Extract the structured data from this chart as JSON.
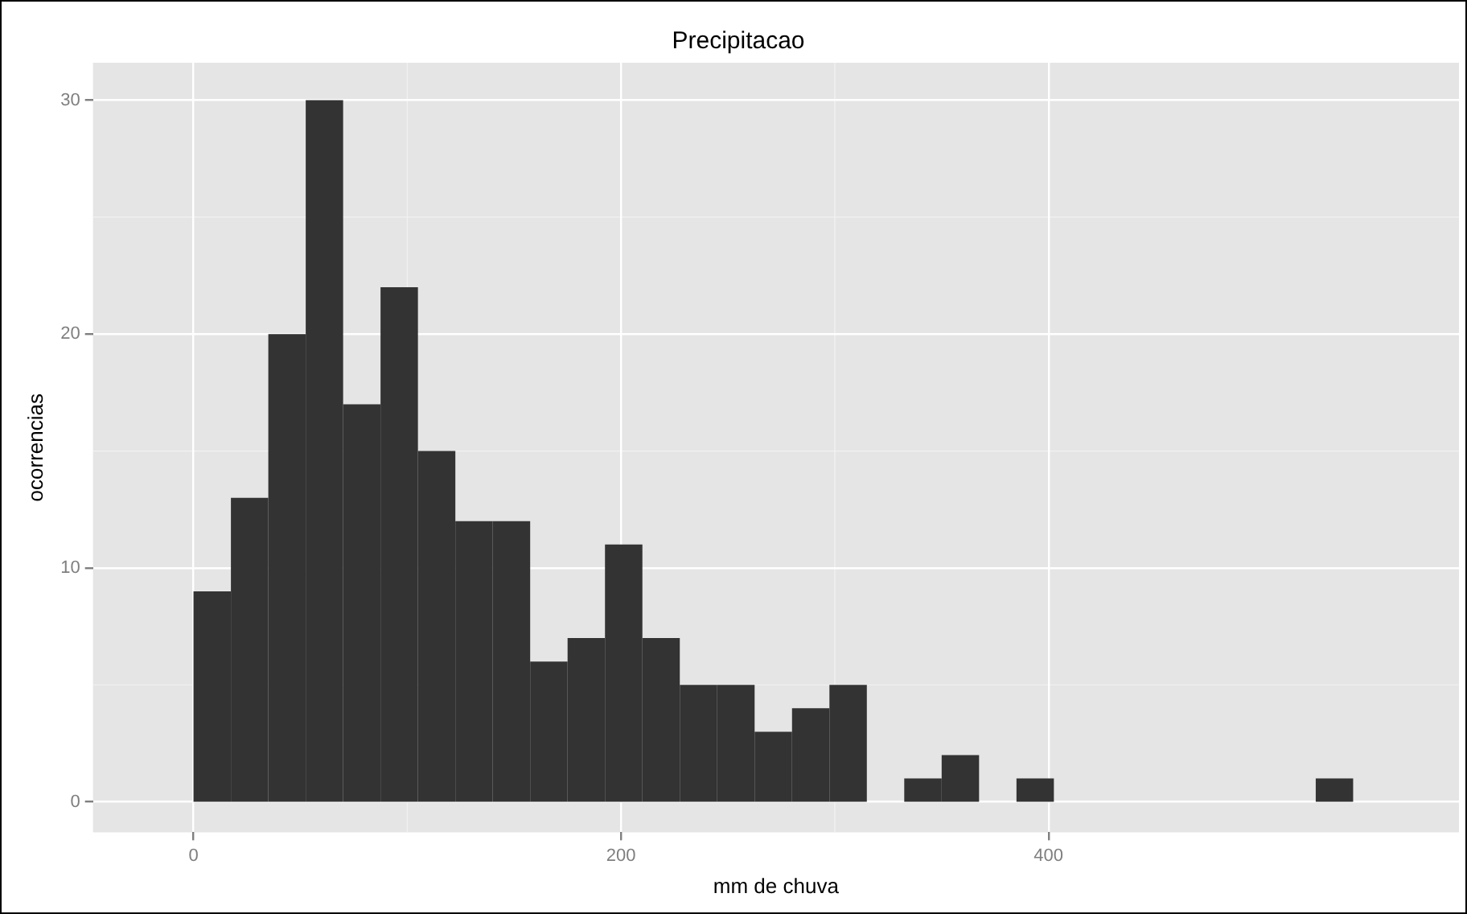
{
  "chart_data": {
    "type": "histogram",
    "title": "Precipitacao",
    "xlabel": "mm de chuva",
    "ylabel": "ocorrencias",
    "bins": [
      0,
      17.5,
      35,
      52.5,
      70,
      87.5,
      105,
      122.5,
      140,
      157.5,
      175,
      192.5,
      210,
      227.5,
      245,
      262.5,
      280,
      297.5,
      315,
      332.5,
      350,
      367.5,
      385,
      402.5,
      420,
      437.5,
      455,
      472.5,
      490,
      507.5,
      525,
      542.5
    ],
    "values": [
      9,
      13,
      20,
      30,
      17,
      22,
      15,
      12,
      12,
      6,
      7,
      11,
      7,
      5,
      5,
      3,
      4,
      5,
      0,
      1,
      2,
      0,
      1,
      0,
      0,
      0,
      0,
      0,
      0,
      0,
      1
    ],
    "color": "#333333",
    "xlim": [
      -47,
      592
    ],
    "ylim": [
      -1.3,
      31.6
    ],
    "xticks": [
      0,
      200,
      400
    ],
    "yticks": [
      0,
      10,
      20,
      30
    ],
    "grid": true
  }
}
